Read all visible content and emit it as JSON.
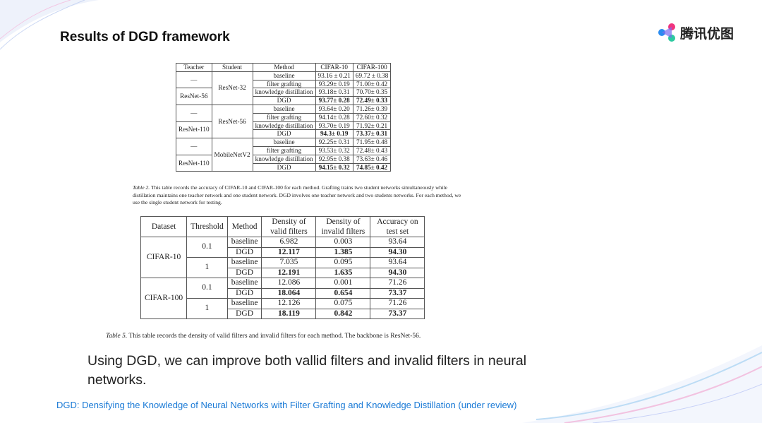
{
  "slide": {
    "title": "Results of DGD framework",
    "logo_text": "腾讯优图",
    "body": "Using DGD, we can improve both vallid filters and invalid filters in neural networks.",
    "footer": "DGD: Densifying the Knowledge of Neural Networks with Filter Grafting and Knowledge Distillation (under review)"
  },
  "table2": {
    "headers": [
      "Teacher",
      "Student",
      "Method",
      "CIFAR-10",
      "CIFAR-100"
    ],
    "groups": [
      {
        "teachers": [
          "—",
          "ResNet-56"
        ],
        "student": "ResNet-32",
        "rows": [
          [
            "baseline",
            "93.16 ± 0.21",
            "69.72 ± 0.38"
          ],
          [
            "filter grafting",
            "93.29± 0.19",
            "71.00± 0.42"
          ],
          [
            "knowledge distillation",
            "93.18± 0.31",
            "70.70± 0.35"
          ],
          [
            "DGD",
            "93.77± 0.28",
            "72.49± 0.33"
          ]
        ]
      },
      {
        "teachers": [
          "—",
          "ResNet-110"
        ],
        "student": "ResNet-56",
        "rows": [
          [
            "baseline",
            "93.64± 0.20",
            "71.26± 0.39"
          ],
          [
            "filter grafting",
            "94.14± 0.28",
            "72.60± 0.32"
          ],
          [
            "knowledge distillation",
            "93.70± 0.19",
            "71.92± 0.21"
          ],
          [
            "DGD",
            "94.3± 0.19",
            "73.37± 0.31"
          ]
        ]
      },
      {
        "teachers": [
          "—",
          "ResNet-110"
        ],
        "student": "MobileNetV2",
        "rows": [
          [
            "baseline",
            "92.25± 0.31",
            "71.95± 0.48"
          ],
          [
            "filter grafting",
            "93.53± 0.32",
            "72.48± 0.43"
          ],
          [
            "knowledge distillation",
            "92.95± 0.38",
            "73.63± 0.46"
          ],
          [
            "DGD",
            "94.15± 0.32",
            "74.85± 0.42"
          ]
        ]
      }
    ],
    "caption_label": "Table 2.",
    "caption": " This table records the accuracy of CIFAR-10 and CIFAR-100 for each method. Grafting trains two student networks simultaneously while distillation maintains one teacher network and one student network. DGD involves one teacher network and two students networks. For each method, we use the single student network for testing."
  },
  "table5": {
    "headers": [
      "Dataset",
      "Threshold",
      "Method",
      "Density of valid filters",
      "Density of invalid filters",
      "Accuracy on test set"
    ],
    "groups": [
      {
        "dataset": "CIFAR-10",
        "subs": [
          {
            "threshold": "0.1",
            "rows": [
              [
                "baseline",
                "6.982",
                "0.003",
                "93.64"
              ],
              [
                "DGD",
                "12.117",
                "1.385",
                "94.30"
              ]
            ]
          },
          {
            "threshold": "1",
            "rows": [
              [
                "baseline",
                "7.035",
                "0.095",
                "93.64"
              ],
              [
                "DGD",
                "12.191",
                "1.635",
                "94.30"
              ]
            ]
          }
        ]
      },
      {
        "dataset": "CIFAR-100",
        "subs": [
          {
            "threshold": "0.1",
            "rows": [
              [
                "baseline",
                "12.086",
                "0.001",
                "71.26"
              ],
              [
                "DGD",
                "18.064",
                "0.654",
                "73.37"
              ]
            ]
          },
          {
            "threshold": "1",
            "rows": [
              [
                "baseline",
                "12.126",
                "0.075",
                "71.26"
              ],
              [
                "DGD",
                "18.119",
                "0.842",
                "73.37"
              ]
            ]
          }
        ]
      }
    ],
    "caption_label": "Table 5.",
    "caption": " This table records the density of valid filters and invalid filters for each method. The backbone is ResNet-56."
  }
}
